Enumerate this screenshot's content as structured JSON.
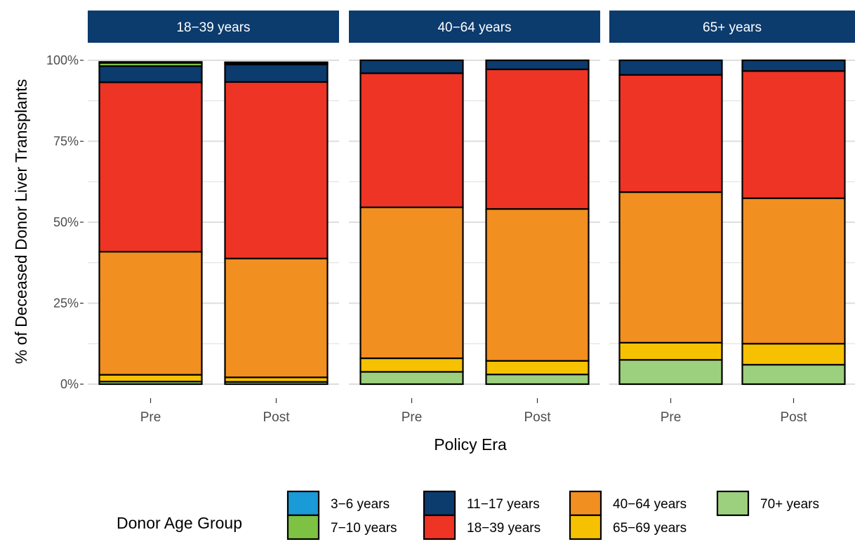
{
  "chart_data": {
    "type": "bar",
    "stacked": true,
    "ylabel": "% of Deceased Donor Liver Transplants",
    "xlabel": "Policy Era",
    "yticks": [
      "0%",
      "25%",
      "50%",
      "75%",
      "100%"
    ],
    "ylim": [
      0,
      100
    ],
    "grid": true,
    "legend_position": "bottom",
    "legend_title": "Donor Age Group",
    "categories": [
      "Pre",
      "Post"
    ],
    "panels": [
      {
        "title": "18−39 years",
        "bars": [
          {
            "era": "Pre",
            "values": {
              "3-6": 0.3,
              "7-10": 1.0,
              "11-17": 5.0,
              "18-39": 52.3,
              "40-64": 38.0,
              "65-69": 2.1,
              "70+": 0.8
            }
          },
          {
            "era": "Post",
            "values": {
              "3-6": 0.3,
              "7-10": 0.4,
              "11-17": 5.4,
              "18-39": 54.5,
              "40-64": 36.7,
              "65-69": 1.4,
              "70+": 0.7
            }
          }
        ]
      },
      {
        "title": "40−64 years",
        "bars": [
          {
            "era": "Pre",
            "values": {
              "3-6": 0.0,
              "7-10": 0.0,
              "11-17": 4.0,
              "18-39": 41.4,
              "40-64": 46.6,
              "65-69": 4.2,
              "70+": 3.8
            }
          },
          {
            "era": "Post",
            "values": {
              "3-6": 0.0,
              "7-10": 0.0,
              "11-17": 2.8,
              "18-39": 43.1,
              "40-64": 46.9,
              "65-69": 4.2,
              "70+": 3.0
            }
          }
        ]
      },
      {
        "title": "65+ years",
        "bars": [
          {
            "era": "Pre",
            "values": {
              "3-6": 0.0,
              "7-10": 0.0,
              "11-17": 4.5,
              "18-39": 36.2,
              "40-64": 46.5,
              "65-69": 5.3,
              "70+": 7.5
            }
          },
          {
            "era": "Post",
            "values": {
              "3-6": 0.0,
              "7-10": 0.0,
              "11-17": 3.3,
              "18-39": 39.3,
              "40-64": 44.9,
              "65-69": 6.5,
              "70+": 6.0
            }
          }
        ]
      }
    ],
    "series": [
      {
        "key": "3-6",
        "name": "3−6 years",
        "color": "#1a9ad6"
      },
      {
        "key": "7-10",
        "name": "7−10 years",
        "color": "#7dc242"
      },
      {
        "key": "11-17",
        "name": "11−17 years",
        "color": "#0c3b6e"
      },
      {
        "key": "18-39",
        "name": "18−39 years",
        "color": "#ee3424"
      },
      {
        "key": "40-64",
        "name": "40−64 years",
        "color": "#f18f20"
      },
      {
        "key": "65-69",
        "name": "65−69 years",
        "color": "#f6c100"
      },
      {
        "key": "70+",
        "name": "70+ years",
        "color": "#9dd07e"
      }
    ],
    "stack_order_bottom_to_top": [
      "70+",
      "65-69",
      "40-64",
      "18-39",
      "11-17",
      "7-10",
      "3-6"
    ],
    "strip_color": "#0c3b6e",
    "grid_color": "#dedede"
  }
}
